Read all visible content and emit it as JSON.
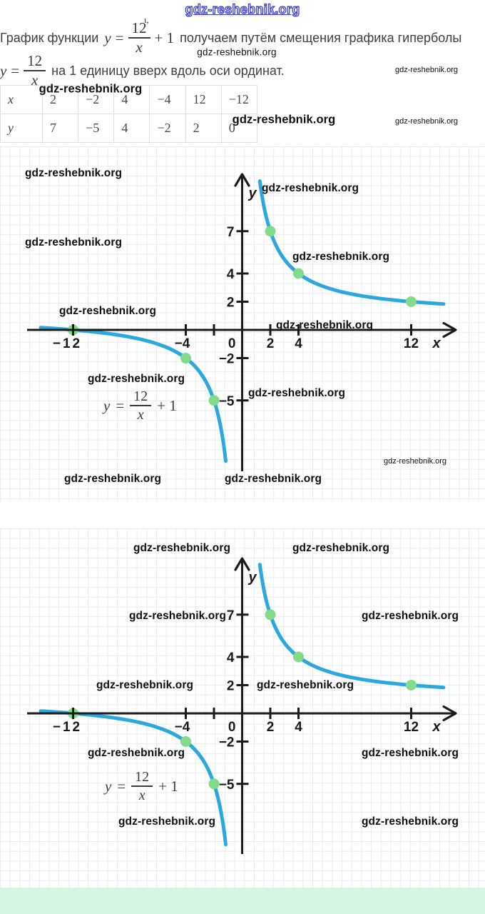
{
  "site": {
    "header_link": "gdz-reshebnik.org"
  },
  "watermark_text": "gdz-reshebnik.org",
  "intro": {
    "pre1": "График функции",
    "math1": {
      "lhs": "y",
      "eq": "=",
      "num": "12",
      "den": "x",
      "suffix": "+ 1"
    },
    "artifact": "ι,",
    "post1": "получаем путём смещения графика гиперболы",
    "math2": {
      "lhs": "y",
      "eq": "=",
      "num": "12",
      "den": "x"
    },
    "post2": "на 1 единицу вверх вдоль оси ординат."
  },
  "table": {
    "rows": [
      {
        "label": "x",
        "values": [
          "2",
          "−2",
          "4",
          "−4",
          "12",
          "−12"
        ]
      },
      {
        "label": "y",
        "values": [
          "7",
          "−5",
          "4",
          "−2",
          "2",
          "0"
        ]
      }
    ]
  },
  "chart_data": [
    {
      "type": "line",
      "function": "y = 12/x + 1",
      "formula_label": {
        "lhs": "y",
        "eq": "=",
        "num": "12",
        "den": "x",
        "suffix": "+ 1"
      },
      "xlabel": "x",
      "ylabel": "y",
      "origin_label": "0",
      "x_ticks": [
        {
          "v": -12,
          "t": "−12"
        },
        {
          "v": -4,
          "t": "−4"
        },
        {
          "v": -2,
          "t": ""
        },
        {
          "v": 2,
          "t": "2"
        },
        {
          "v": 4,
          "t": "4"
        },
        {
          "v": 12,
          "t": "12"
        }
      ],
      "y_ticks": [
        {
          "v": 7,
          "t": "7"
        },
        {
          "v": 4,
          "t": "4"
        },
        {
          "v": 2,
          "t": "2"
        },
        {
          "v": -2,
          "t": "−2"
        },
        {
          "v": -5,
          "t": "−5"
        }
      ],
      "marked_points": [
        [
          2,
          7
        ],
        [
          4,
          4
        ],
        [
          12,
          2
        ],
        [
          -4,
          -2
        ],
        [
          -2,
          -5
        ],
        [
          -12,
          0
        ]
      ],
      "branches_x_range": [
        [
          -14.3,
          -1.165
        ],
        [
          1.2565,
          14.3
        ]
      ],
      "grid": true,
      "asymptote": "y = 1",
      "colors": {
        "curve": "#2BA8DE",
        "points": "#82DB88",
        "axis": "#1B1B1B"
      }
    },
    {
      "type": "line",
      "function": "y = 12/x + 1",
      "formula_label": {
        "lhs": "y",
        "eq": "=",
        "num": "12",
        "den": "x",
        "suffix": "+ 1"
      },
      "xlabel": "x",
      "ylabel": "y",
      "origin_label": "0",
      "x_ticks": [
        {
          "v": -12,
          "t": "−12"
        },
        {
          "v": -4,
          "t": "−4"
        },
        {
          "v": -2,
          "t": ""
        },
        {
          "v": 2,
          "t": "2"
        },
        {
          "v": 4,
          "t": "4"
        },
        {
          "v": 12,
          "t": "12"
        }
      ],
      "y_ticks": [
        {
          "v": 7,
          "t": "7"
        },
        {
          "v": 4,
          "t": "4"
        },
        {
          "v": 2,
          "t": "2"
        },
        {
          "v": -2,
          "t": "−2"
        },
        {
          "v": -5,
          "t": "−5"
        }
      ],
      "marked_points": [
        [
          2,
          7
        ],
        [
          4,
          4
        ],
        [
          12,
          2
        ],
        [
          -4,
          -2
        ],
        [
          -2,
          -5
        ],
        [
          -12,
          0
        ]
      ],
      "branches_x_range": [
        [
          -14.3,
          -1.165
        ],
        [
          1.2565,
          14.3
        ]
      ],
      "grid": true,
      "asymptote": "y = 1",
      "colors": {
        "curve": "#2BA8DE",
        "points": "#82DB88",
        "axis": "#1B1B1B"
      }
    }
  ]
}
